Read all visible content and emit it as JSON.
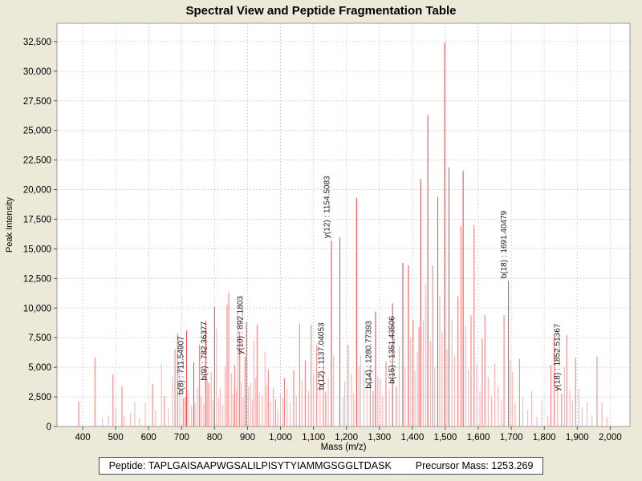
{
  "page": {
    "title": "Spectral View and Peptide Fragmentation Table"
  },
  "footer": {
    "peptide_label": "Peptide:",
    "peptide": "TAPLGAISAAPWGSALILPISYTYIAMMGSGGLTDASK",
    "precursor_label": "Precursor Mass:",
    "precursor_mass": "1253.269"
  },
  "chart_data": {
    "type": "bar",
    "subtype": "mass-spectrum-stick-plot",
    "title": "Spectral View and Peptide Fragmentation Table",
    "xlabel": "Mass (m/z)",
    "ylabel": "Peak Intensity",
    "xlim": [
      322,
      2060
    ],
    "ylim": [
      0,
      34050
    ],
    "xticks": {
      "min": 400,
      "max": 2000,
      "step": 100
    },
    "yticks": {
      "min": 0,
      "max": 32500,
      "step": 2500
    },
    "grid": "dashed",
    "colors": {
      "background": "#ece9d8",
      "plot_bg": "#ffffff",
      "plot_border": "#9a9a9a",
      "grid": "#d6d6d6",
      "tick": "#555555",
      "label": "#1a1a1a",
      "peak_shades": [
        "#fbb3b3",
        "#f98282",
        "#ee5252"
      ]
    },
    "annotations": [
      {
        "label": "b(8) : 711.54907",
        "mz": 711.5,
        "intensity": 2500
      },
      {
        "label": "b(9) : 782.36377",
        "mz": 782.4,
        "intensity": 3700
      },
      {
        "label": "y(10) : 892.1803",
        "mz": 892.2,
        "intensity": 5900
      },
      {
        "label": "b(12) : 1137.04053",
        "mz": 1137.0,
        "intensity": 2900
      },
      {
        "label": "y(12) : 1154.5083",
        "mz": 1154.5,
        "intensity": 15700
      },
      {
        "label": "b(14) : 1280.77393",
        "mz": 1280.8,
        "intensity": 3000
      },
      {
        "label": "b(15) : 1351.43506",
        "mz": 1351.4,
        "intensity": 3400
      },
      {
        "label": "b(18) : 1691.40479",
        "mz": 1691.4,
        "intensity": 12300
      },
      {
        "label": "y(18) : 1852.51367",
        "mz": 1852.5,
        "intensity": 2800
      }
    ],
    "peaks": [
      [
        388,
        2100,
        1
      ],
      [
        437,
        5800,
        1
      ],
      [
        460,
        700,
        0
      ],
      [
        478,
        900,
        0
      ],
      [
        492,
        4400,
        1
      ],
      [
        500,
        1600,
        0
      ],
      [
        519,
        3400,
        1
      ],
      [
        526,
        900,
        0
      ],
      [
        545,
        1100,
        0
      ],
      [
        558,
        2100,
        0
      ],
      [
        572,
        700,
        0
      ],
      [
        590,
        2000,
        0
      ],
      [
        612,
        3600,
        1
      ],
      [
        621,
        1400,
        0
      ],
      [
        639,
        5300,
        0
      ],
      [
        648,
        2600,
        1
      ],
      [
        660,
        1500,
        0
      ],
      [
        673,
        4300,
        0
      ],
      [
        680,
        6500,
        1
      ],
      [
        688,
        7900,
        1
      ],
      [
        694,
        5000,
        0
      ],
      [
        705,
        2400,
        1
      ],
      [
        711.5,
        2500,
        1
      ],
      [
        715,
        8100,
        2
      ],
      [
        719,
        3000,
        0
      ],
      [
        730,
        1800,
        0
      ],
      [
        737,
        5400,
        2
      ],
      [
        741,
        2000,
        0
      ],
      [
        748,
        3300,
        0
      ],
      [
        754,
        6900,
        1
      ],
      [
        760,
        2600,
        0
      ],
      [
        767,
        1900,
        0
      ],
      [
        773,
        8900,
        2
      ],
      [
        778,
        4000,
        0
      ],
      [
        782.4,
        3700,
        1
      ],
      [
        790,
        4600,
        0
      ],
      [
        795,
        2200,
        0
      ],
      [
        800,
        10100,
        2
      ],
      [
        806,
        8300,
        0
      ],
      [
        812,
        2400,
        0
      ],
      [
        817,
        3200,
        0
      ],
      [
        825,
        1800,
        0
      ],
      [
        832,
        5000,
        0
      ],
      [
        838,
        10300,
        1
      ],
      [
        843,
        11300,
        1
      ],
      [
        851,
        4500,
        0
      ],
      [
        857,
        2700,
        0
      ],
      [
        861,
        5200,
        1
      ],
      [
        866,
        3100,
        0
      ],
      [
        870,
        9600,
        0
      ],
      [
        876,
        8000,
        1
      ],
      [
        882,
        3800,
        0
      ],
      [
        887,
        2500,
        0
      ],
      [
        892.2,
        5900,
        1
      ],
      [
        897,
        8800,
        2
      ],
      [
        903,
        3400,
        0
      ],
      [
        909,
        3700,
        0
      ],
      [
        915,
        2200,
        0
      ],
      [
        919,
        7200,
        0
      ],
      [
        925,
        4100,
        0
      ],
      [
        929,
        8600,
        1
      ],
      [
        936,
        2900,
        0
      ],
      [
        944,
        2600,
        0
      ],
      [
        953,
        6300,
        0
      ],
      [
        958,
        3500,
        0
      ],
      [
        963,
        4800,
        1
      ],
      [
        970,
        2100,
        0
      ],
      [
        978,
        3300,
        0
      ],
      [
        985,
        2300,
        1
      ],
      [
        992,
        1500,
        0
      ],
      [
        1000,
        2700,
        0
      ],
      [
        1007,
        2400,
        0
      ],
      [
        1012,
        4100,
        1
      ],
      [
        1020,
        3200,
        0
      ],
      [
        1030,
        2000,
        0
      ],
      [
        1040,
        4800,
        1
      ],
      [
        1048,
        2600,
        0
      ],
      [
        1058,
        8700,
        1
      ],
      [
        1065,
        3900,
        0
      ],
      [
        1075,
        5600,
        1
      ],
      [
        1085,
        3000,
        0
      ],
      [
        1093,
        8600,
        1
      ],
      [
        1100,
        4400,
        0
      ],
      [
        1110,
        6900,
        1
      ],
      [
        1120,
        3600,
        0
      ],
      [
        1130,
        5200,
        1
      ],
      [
        1137.0,
        2900,
        1
      ],
      [
        1145,
        4100,
        0
      ],
      [
        1154.5,
        15700,
        2
      ],
      [
        1161,
        6000,
        0
      ],
      [
        1180,
        16000,
        2
      ],
      [
        1190,
        2400,
        0
      ],
      [
        1195,
        3800,
        0
      ],
      [
        1205,
        6900,
        1
      ],
      [
        1215,
        4400,
        0
      ],
      [
        1222,
        2800,
        0
      ],
      [
        1231,
        19300,
        2
      ],
      [
        1238,
        5100,
        0
      ],
      [
        1243,
        6000,
        0
      ],
      [
        1253,
        4800,
        0
      ],
      [
        1262,
        3400,
        0
      ],
      [
        1272,
        5200,
        1
      ],
      [
        1280.8,
        3000,
        1
      ],
      [
        1288,
        9700,
        2
      ],
      [
        1295,
        4200,
        0
      ],
      [
        1303,
        4000,
        0
      ],
      [
        1310,
        2600,
        0
      ],
      [
        1320,
        5500,
        1
      ],
      [
        1330,
        3200,
        0
      ],
      [
        1340,
        10400,
        2
      ],
      [
        1351.4,
        3400,
        1
      ],
      [
        1360,
        6800,
        0
      ],
      [
        1371,
        13800,
        2
      ],
      [
        1378,
        5000,
        0
      ],
      [
        1388,
        13600,
        2
      ],
      [
        1395,
        7500,
        0
      ],
      [
        1402,
        9000,
        1
      ],
      [
        1408,
        4700,
        0
      ],
      [
        1415,
        6300,
        0
      ],
      [
        1420,
        8400,
        1
      ],
      [
        1425,
        20900,
        2
      ],
      [
        1433,
        9000,
        0
      ],
      [
        1440,
        12000,
        0
      ],
      [
        1447,
        26300,
        2
      ],
      [
        1455,
        7200,
        0
      ],
      [
        1462,
        13600,
        1
      ],
      [
        1468,
        5000,
        0
      ],
      [
        1477,
        19400,
        2
      ],
      [
        1483,
        11000,
        0
      ],
      [
        1490,
        8000,
        0
      ],
      [
        1498,
        32400,
        2
      ],
      [
        1505,
        6500,
        0
      ],
      [
        1511,
        21900,
        2
      ],
      [
        1520,
        9000,
        0
      ],
      [
        1528,
        6000,
        0
      ],
      [
        1538,
        11000,
        1
      ],
      [
        1547,
        16900,
        1
      ],
      [
        1554,
        21600,
        2
      ],
      [
        1561,
        8500,
        0
      ],
      [
        1570,
        4800,
        0
      ],
      [
        1578,
        9400,
        1
      ],
      [
        1587,
        17000,
        1
      ],
      [
        1595,
        5200,
        0
      ],
      [
        1605,
        3000,
        0
      ],
      [
        1612,
        7400,
        1
      ],
      [
        1620,
        9400,
        1
      ],
      [
        1630,
        4200,
        0
      ],
      [
        1640,
        2600,
        0
      ],
      [
        1650,
        5300,
        0
      ],
      [
        1660,
        3400,
        0
      ],
      [
        1670,
        2200,
        0
      ],
      [
        1678,
        9400,
        1
      ],
      [
        1691.4,
        12300,
        2
      ],
      [
        1697,
        5600,
        0
      ],
      [
        1704,
        4600,
        0
      ],
      [
        1712,
        2000,
        0
      ],
      [
        1725,
        5700,
        1
      ],
      [
        1735,
        2400,
        0
      ],
      [
        1750,
        1400,
        0
      ],
      [
        1762,
        3000,
        0
      ],
      [
        1778,
        800,
        0
      ],
      [
        1793,
        2200,
        0
      ],
      [
        1810,
        900,
        0
      ],
      [
        1820,
        5200,
        1
      ],
      [
        1830,
        7600,
        1
      ],
      [
        1840,
        3500,
        0
      ],
      [
        1852.5,
        2800,
        1
      ],
      [
        1861,
        5000,
        0
      ],
      [
        1868,
        7700,
        1
      ],
      [
        1878,
        3000,
        0
      ],
      [
        1886,
        2200,
        0
      ],
      [
        1895,
        5800,
        1
      ],
      [
        1905,
        3200,
        0
      ],
      [
        1915,
        1600,
        0
      ],
      [
        1930,
        2100,
        0
      ],
      [
        1945,
        1000,
        0
      ],
      [
        1960,
        5900,
        1
      ],
      [
        1975,
        2000,
        0
      ],
      [
        1990,
        800,
        0
      ]
    ]
  }
}
